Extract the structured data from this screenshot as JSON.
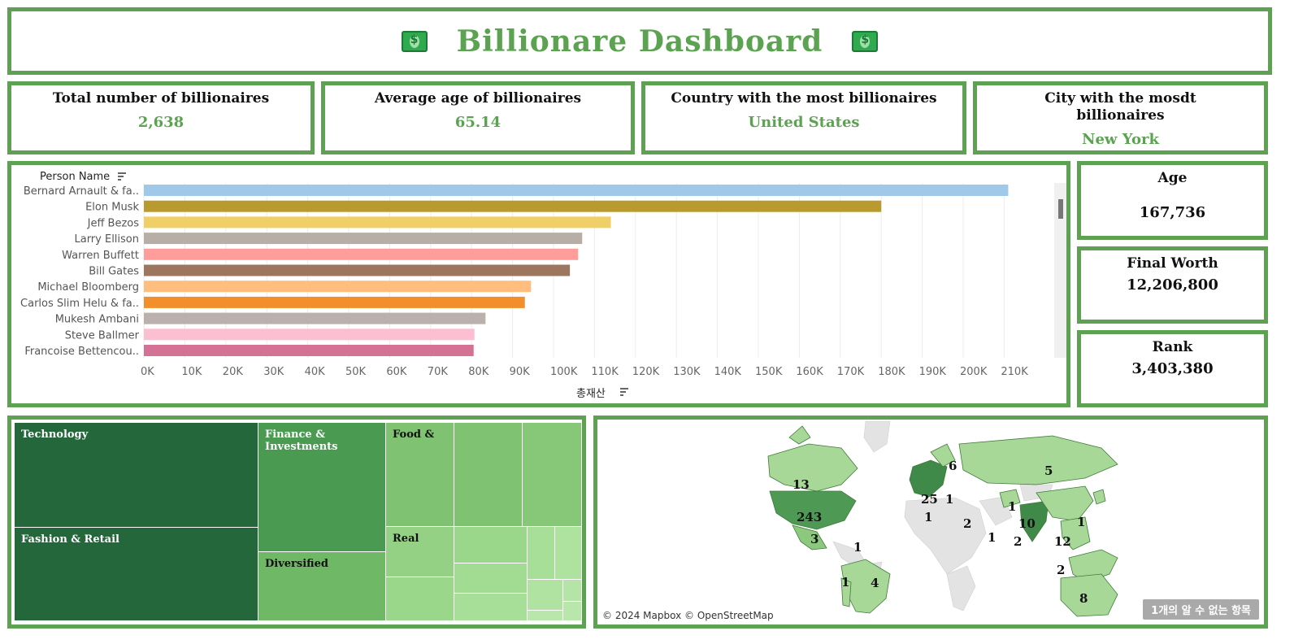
{
  "header": {
    "title": "Billionare Dashboard",
    "icon_left": "money-icon",
    "icon_right": "money-icon"
  },
  "kpis": [
    {
      "label": "Total number of billionaires",
      "value": "2,638"
    },
    {
      "label": "Average age of billionaires",
      "value": "65.14"
    },
    {
      "label": "Country with the most billionaires",
      "value": "United States"
    },
    {
      "label": "City with the mosdt billionaires",
      "value": "New York"
    }
  ],
  "stats": [
    {
      "label": "Age",
      "value": "167,736"
    },
    {
      "label": "Final Worth",
      "value": "12,206,800"
    },
    {
      "label": "Rank",
      "value": "3,403,380"
    }
  ],
  "chart_data": {
    "type": "bar",
    "orientation": "horizontal",
    "ylabel": "Person Name",
    "xlabel": "총재산",
    "categories": [
      "Bernard Arnault & fa..",
      "Elon Musk",
      "Jeff Bezos",
      "Larry Ellison",
      "Warren Buffett",
      "Bill Gates",
      "Michael Bloomberg",
      "Carlos Slim Helu & fa..",
      "Mukesh Ambani",
      "Steve Ballmer",
      "Francoise Bettencou.."
    ],
    "values": [
      211000,
      180000,
      114000,
      107000,
      106000,
      104000,
      94500,
      93000,
      83400,
      80700,
      80500
    ],
    "colors": [
      "#a0c8e8",
      "#b89a2f",
      "#efcf66",
      "#b8aea8",
      "#ff9d9a",
      "#9d7660",
      "#ffbe7d",
      "#f28e2b",
      "#bab0ac",
      "#fcbfd2",
      "#d37295"
    ],
    "xticks": [
      "0K",
      "10K",
      "20K",
      "30K",
      "40K",
      "50K",
      "60K",
      "70K",
      "80K",
      "90K",
      "100K",
      "110K",
      "120K",
      "130K",
      "140K",
      "150K",
      "160K",
      "170K",
      "180K",
      "190K",
      "200K",
      "210K"
    ],
    "xlim": [
      0,
      210000
    ],
    "grid": true
  },
  "treemap": {
    "labels": [
      "Technology",
      "Fashion & Retail",
      "Finance & Investments",
      "Diversified",
      "Food &",
      "Real"
    ],
    "colors": [
      "#23673b",
      "#4a9a52",
      "#6fb865",
      "#7fc271",
      "#8dcc7e",
      "#a8dc98",
      "#b9e6aa"
    ]
  },
  "map": {
    "credit": "© 2024 Mapbox © OpenStreetMap",
    "unknown": "1개의 알 수 없는 항목",
    "labels": [
      "13",
      "243",
      "3",
      "1",
      "6",
      "25",
      "1",
      "1",
      "2",
      "1",
      "10",
      "1",
      "2",
      "12",
      "5",
      "1",
      "1",
      "4",
      "2",
      "8"
    ]
  }
}
